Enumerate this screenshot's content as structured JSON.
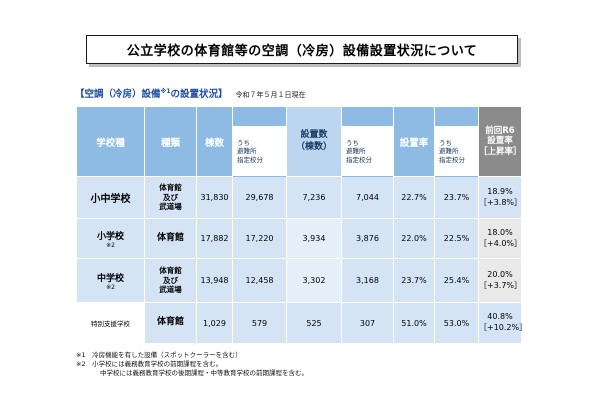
{
  "title": "公立学校の体育館等の空調（冷房）設備設置状況について",
  "subtitle": {
    "main": "【空調（冷房）設備",
    "note_mark": "※1",
    "main_end": "の設置状況】",
    "date": "令和７年５月１日現在"
  },
  "table": {
    "headers": {
      "school_type": "学校種",
      "kind": "種類",
      "buildings": "棟数",
      "buildings_shelter": "うち\n避難所\n指定校分",
      "installed": "設置数\n（棟数）",
      "installed_shelter": "うち\n避難所\n指定校分",
      "rate": "設置率",
      "rate_shelter": "うち\n避難所\n指定校分",
      "previous": "前回R6\n設置率\n［上昇率］"
    },
    "rows": [
      {
        "school": "小中学校",
        "note": "",
        "kind": "体育館\n及び\n武道場",
        "buildings": "31,830",
        "buildings_shelter": "29,678",
        "installed": "7,236",
        "installed_shelter": "7,044",
        "rate": "22.7%",
        "rate_shelter": "23.7%",
        "prev_rate": "18.9%",
        "prev_increase": "［+3.8%］"
      },
      {
        "school": "小学校",
        "note": "※2",
        "kind": "体育館",
        "buildings": "17,882",
        "buildings_shelter": "17,220",
        "installed": "3,934",
        "installed_shelter": "3,876",
        "rate": "22.0%",
        "rate_shelter": "22.5%",
        "prev_rate": "18.0%",
        "prev_increase": "［+4.0%］"
      },
      {
        "school": "中学校",
        "note": "※2",
        "kind": "体育館\n及び\n武道場",
        "buildings": "13,948",
        "buildings_shelter": "12,458",
        "installed": "3,302",
        "installed_shelter": "3,168",
        "rate": "23.7%",
        "rate_shelter": "25.4%",
        "prev_rate": "20.0%",
        "prev_increase": "［+3.7%］"
      },
      {
        "school": "特別支援学校",
        "note": "",
        "kind": "体育館",
        "buildings": "1,029",
        "buildings_shelter": "579",
        "installed": "525",
        "installed_shelter": "307",
        "rate": "51.0%",
        "rate_shelter": "53.0%",
        "prev_rate": "40.8%",
        "prev_increase": "［+10.2%］"
      }
    ]
  },
  "footnotes": [
    "※1　冷房機能を有した設備（スポットクーラーを含む）",
    "※2　小学校には義務教育学校の前期課程を含む。",
    "中学校には義務教育学校の後期課程・中等教育学校の前期課程を含む。"
  ],
  "colors": {
    "header_blue": "#8ebbe3",
    "row_blue": "#d4e4f5",
    "highlight": "#bcd6ef",
    "gray_header": "#8b8b8b",
    "title_blue": "#1f4fa0"
  }
}
